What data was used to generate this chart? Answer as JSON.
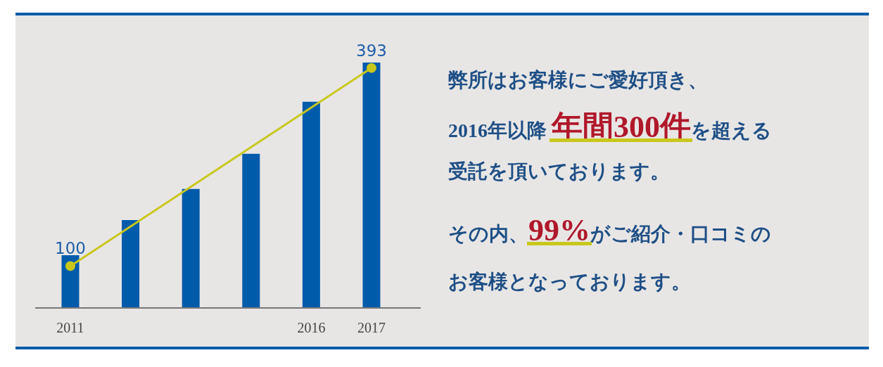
{
  "chart_data": {
    "type": "bar",
    "ylim": [
      38,
      402
    ],
    "categories": [
      "2011",
      null,
      null,
      null,
      "2016",
      "2017"
    ],
    "series": [
      {
        "color": "#005bab",
        "values": [
          116,
          168,
          214,
          266,
          343,
          401
        ]
      },
      {
        "type": "line",
        "color": "#c9c71c",
        "marker": "circle",
        "values": [
          100,
          null,
          null,
          null,
          null,
          393
        ],
        "value_labels": [
          "100",
          null,
          null,
          null,
          null,
          "393"
        ]
      }
    ],
    "annotations": [
      "弊所はお客様にご愛好頂き、",
      "2016年以降 **年間300件**を超える",
      "受託を頂いております。",
      "その内、**99%**がご紹介・口コミの",
      "お客様となっております。"
    ]
  }
}
